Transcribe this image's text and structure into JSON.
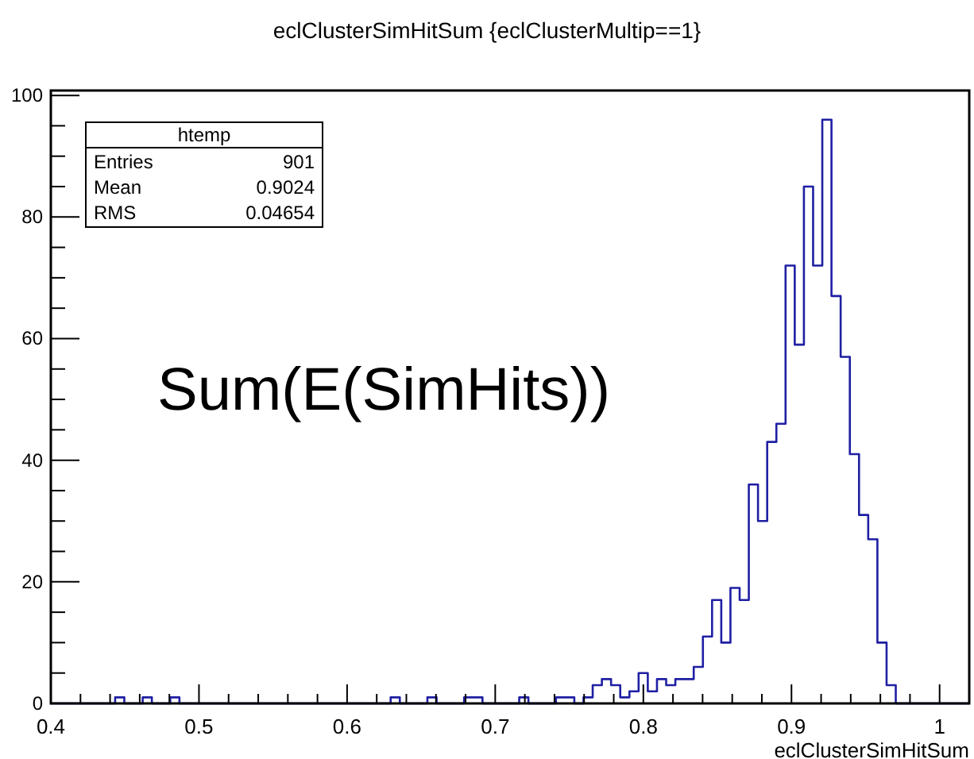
{
  "chart_data": {
    "type": "histogram",
    "title": "eclClusterSimHitSum {eclClusterMultip==1}",
    "xlabel": "eclClusterSimHitSum",
    "annotations": [
      "htemp",
      "Entries",
      "901",
      "Mean",
      "0.9024",
      "RMS",
      "0.04654",
      "Sum(E(SimHits))"
    ],
    "bins": [
      0.4,
      0.4062,
      0.4124,
      0.4186,
      0.4248,
      0.431,
      0.4372,
      0.4434,
      0.4496,
      0.4558,
      0.462,
      0.4682,
      0.4744,
      0.4806,
      0.4868,
      0.493,
      0.4992,
      0.5054,
      0.5116,
      0.5178,
      0.524,
      0.5302,
      0.5364,
      0.5426,
      0.5488,
      0.555,
      0.5612,
      0.5674,
      0.5736,
      0.5798,
      0.586,
      0.5922,
      0.5984,
      0.6046,
      0.6108,
      0.617,
      0.6232,
      0.6294,
      0.6356,
      0.6418,
      0.648,
      0.6542,
      0.6604,
      0.6666,
      0.6728,
      0.679,
      0.6852,
      0.6914,
      0.6976,
      0.7038,
      0.71,
      0.7162,
      0.7224,
      0.7286,
      0.7348,
      0.741,
      0.7472,
      0.7534,
      0.7596,
      0.7658,
      0.772,
      0.7782,
      0.7844,
      0.7906,
      0.7968,
      0.803,
      0.8092,
      0.8154,
      0.8216,
      0.8278,
      0.834,
      0.8402,
      0.8464,
      0.8526,
      0.8588,
      0.865,
      0.8712,
      0.8774,
      0.8836,
      0.8898,
      0.896,
      0.9022,
      0.9084,
      0.9146,
      0.9208,
      0.927,
      0.9332,
      0.9394,
      0.9456,
      0.9518,
      0.958,
      0.9642,
      0.9704,
      0.9766,
      0.9828,
      0.989,
      0.9952,
      1.0014,
      1.0076,
      1.0138,
      1.02
    ],
    "values": [
      0,
      0,
      0,
      0,
      0,
      0,
      0,
      1,
      0,
      0,
      1,
      0,
      0,
      1,
      0,
      0,
      0,
      0,
      0,
      0,
      0,
      0,
      0,
      0,
      0,
      0,
      0,
      0,
      0,
      0,
      0,
      0,
      0,
      0,
      0,
      0,
      0,
      1,
      0,
      0,
      0,
      1,
      0,
      0,
      0,
      1,
      1,
      0,
      0,
      0,
      0,
      1,
      0,
      0,
      0,
      1,
      1,
      0,
      1,
      3,
      4,
      3,
      1,
      2,
      5,
      2,
      4,
      3,
      4,
      4,
      6,
      11,
      17,
      10,
      19,
      17,
      36,
      30,
      43,
      46,
      72,
      59,
      85,
      72,
      96,
      67,
      57,
      41,
      31,
      27,
      10,
      3,
      0,
      0,
      0,
      0,
      0,
      0,
      0,
      0
    ],
    "color": "#1f1fa3",
    "xlim": [
      0.4,
      1.02
    ],
    "ylim": [
      0,
      100.8
    ],
    "xticks": [
      {
        "value": 0.4,
        "label": "0.4"
      },
      {
        "value": 0.42,
        "label": null
      },
      {
        "value": 0.44,
        "label": null
      },
      {
        "value": 0.46,
        "label": null
      },
      {
        "value": 0.48,
        "label": null
      },
      {
        "value": 0.5,
        "label": "0.5"
      },
      {
        "value": 0.52,
        "label": null
      },
      {
        "value": 0.54,
        "label": null
      },
      {
        "value": 0.56,
        "label": null
      },
      {
        "value": 0.58,
        "label": null
      },
      {
        "value": 0.6,
        "label": "0.6"
      },
      {
        "value": 0.62,
        "label": null
      },
      {
        "value": 0.64,
        "label": null
      },
      {
        "value": 0.66,
        "label": null
      },
      {
        "value": 0.68,
        "label": null
      },
      {
        "value": 0.7,
        "label": "0.7"
      },
      {
        "value": 0.72,
        "label": null
      },
      {
        "value": 0.74,
        "label": null
      },
      {
        "value": 0.76,
        "label": null
      },
      {
        "value": 0.78,
        "label": null
      },
      {
        "value": 0.8,
        "label": "0.8"
      },
      {
        "value": 0.82,
        "label": null
      },
      {
        "value": 0.84,
        "label": null
      },
      {
        "value": 0.86,
        "label": null
      },
      {
        "value": 0.88,
        "label": null
      },
      {
        "value": 0.9,
        "label": "0.9"
      },
      {
        "value": 0.92,
        "label": null
      },
      {
        "value": 0.94,
        "label": null
      },
      {
        "value": 0.96,
        "label": null
      },
      {
        "value": 0.98,
        "label": null
      },
      {
        "value": 1,
        "label": "1"
      }
    ],
    "yticks": [
      0,
      {
        "value": 5,
        "label": null
      },
      {
        "value": 10,
        "label": null
      },
      {
        "value": 15,
        "label": null
      },
      20,
      {
        "value": 25,
        "label": null
      },
      {
        "value": 30,
        "label": null
      },
      {
        "value": 35,
        "label": null
      },
      40,
      {
        "value": 45,
        "label": null
      },
      {
        "value": 50,
        "label": null
      },
      {
        "value": 55,
        "label": null
      },
      60,
      {
        "value": 65,
        "label": null
      },
      {
        "value": 70,
        "label": null
      },
      {
        "value": 75,
        "label": null
      },
      80,
      {
        "value": 85,
        "label": null
      },
      {
        "value": 90,
        "label": null
      },
      {
        "value": 95,
        "label": null
      },
      100
    ],
    "grid": false
  }
}
